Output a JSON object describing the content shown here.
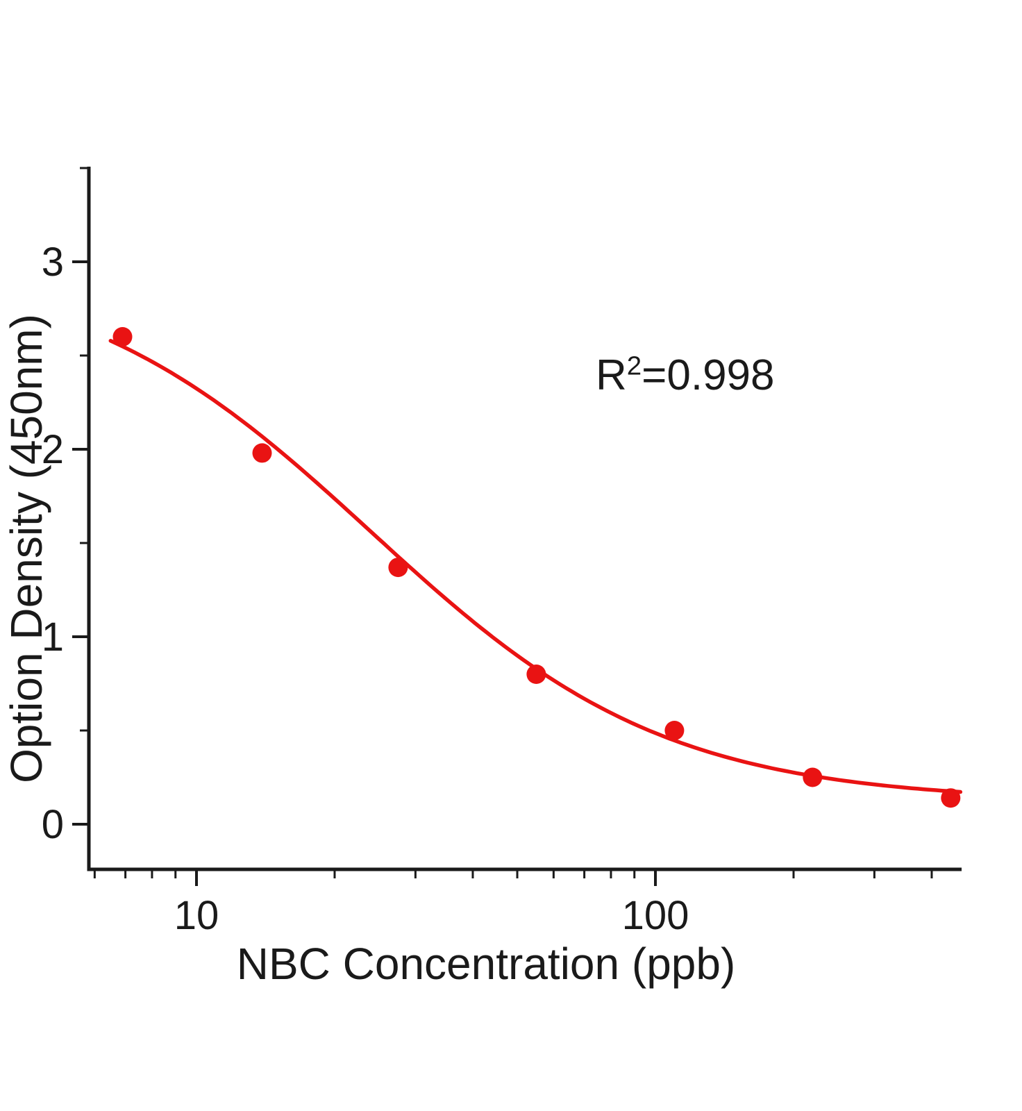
{
  "chart_data": {
    "type": "scatter",
    "title": "",
    "xlabel": "NBC Concentration (ppb)",
    "ylabel": "Option Density (450nm)",
    "annotation": {
      "base": "R",
      "sup": "2",
      "rest": "=0.998"
    },
    "r_squared": 0.998,
    "x_scale": "log",
    "x_range": [
      5.9,
      464
    ],
    "y_range": [
      -0.24,
      3.51
    ],
    "x_ticks_major": [
      10,
      100
    ],
    "x_tick_labels": [
      "10",
      "100"
    ],
    "x_ticks_minor": [
      6,
      7,
      8,
      9,
      20,
      30,
      40,
      50,
      60,
      70,
      80,
      90,
      200,
      300,
      400
    ],
    "y_ticks_major": [
      0,
      1,
      2,
      3
    ],
    "y_tick_labels": [
      "0",
      "1",
      "2",
      "3"
    ],
    "y_ticks_minor": [
      0.5,
      1.5,
      2.5,
      3.5
    ],
    "legend": "none",
    "grid": "off",
    "points": {
      "x": [
        6.9,
        13.9,
        27.5,
        55,
        110,
        220,
        440
      ],
      "y": [
        2.6,
        1.98,
        1.37,
        0.8,
        0.5,
        0.25,
        0.14
      ]
    },
    "fit": {
      "model": "4PL",
      "a": 3.0,
      "b": 1.35,
      "c": 24.0,
      "d": 0.12,
      "x_start": 6.5,
      "x_end": 462
    },
    "marker_radius": 14,
    "colors": {
      "series": "#e91313",
      "axis": "#1a1a1a",
      "text": "#1a1a1a",
      "background": "#ffffff"
    }
  }
}
